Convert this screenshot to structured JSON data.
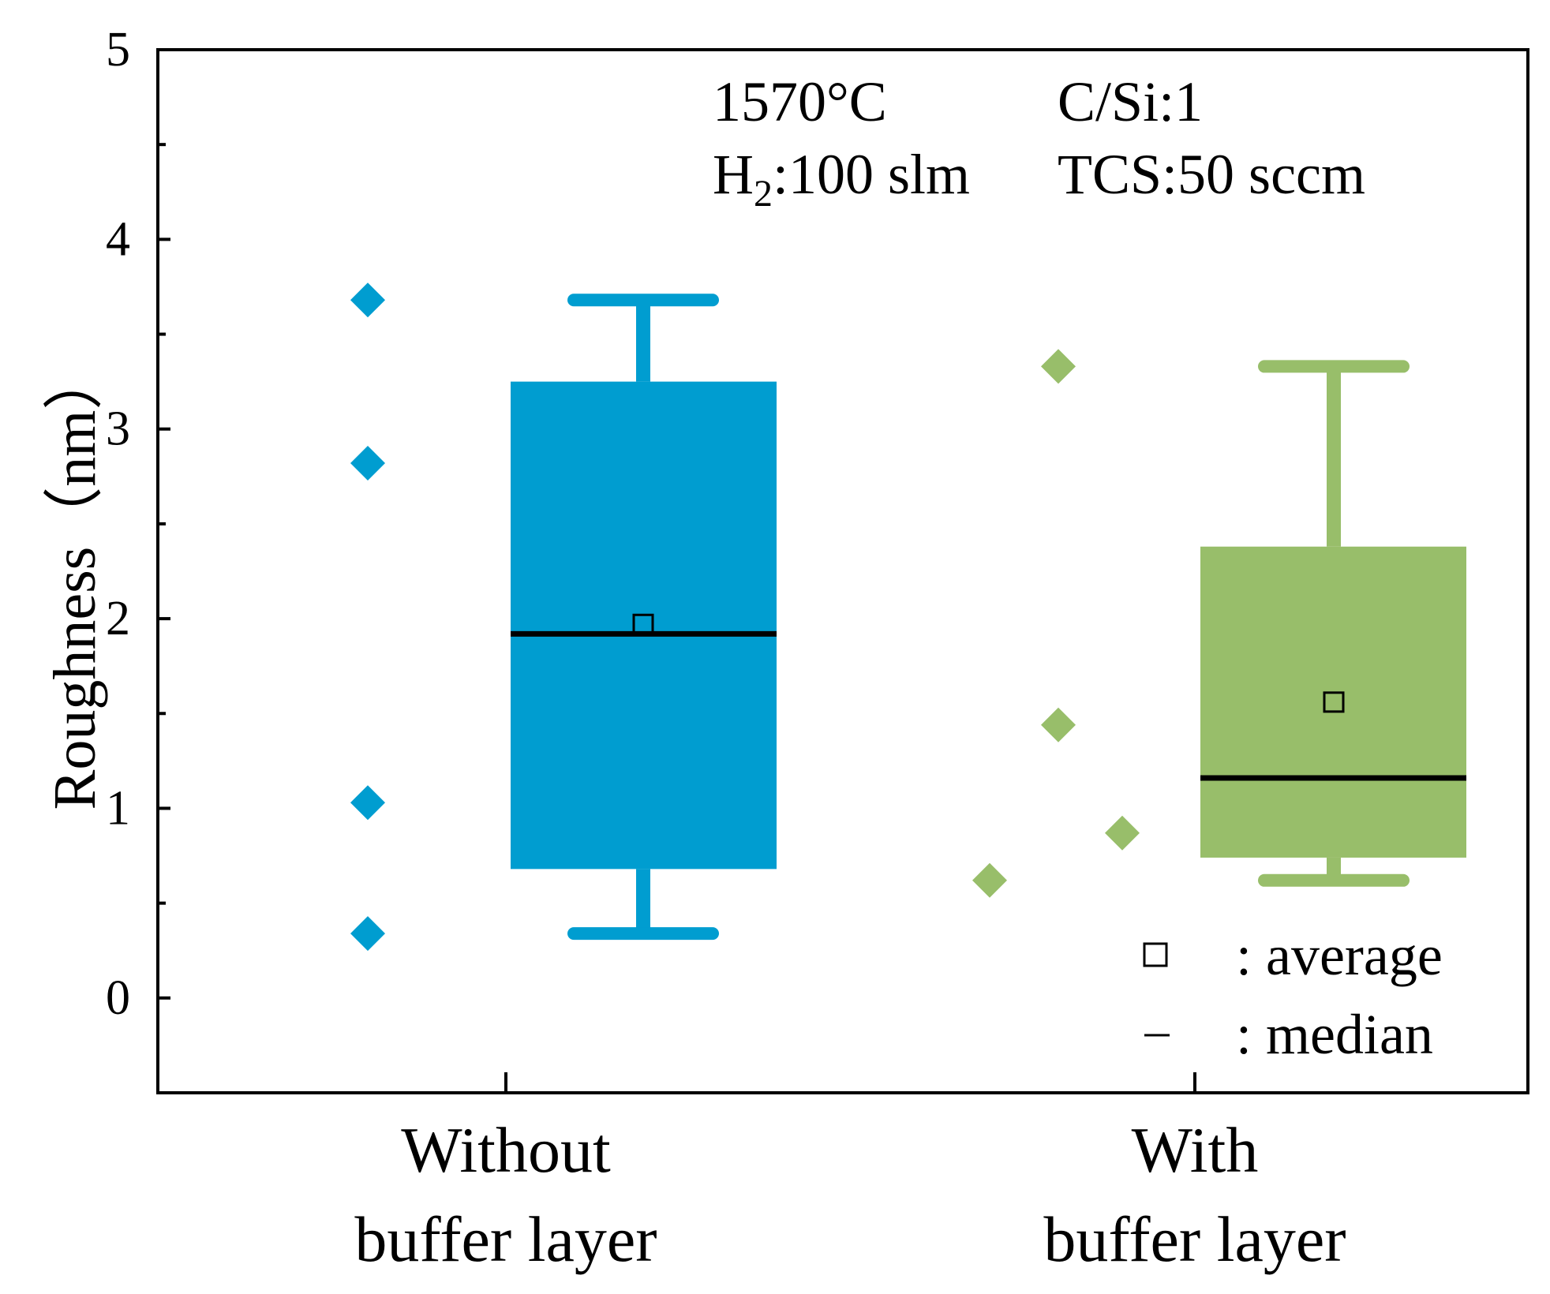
{
  "chart_data": {
    "type": "box",
    "ylabel": "Roughness（nm）",
    "ylim": [
      -0.5,
      5
    ],
    "yticks": [
      "0",
      "1",
      "2",
      "3",
      "4",
      "5"
    ],
    "yticks_values": [
      0,
      1,
      2,
      3,
      4,
      5
    ],
    "categories": [
      {
        "line1": "Without",
        "line2": "buffer layer"
      },
      {
        "line1": "With",
        "line2": "buffer layer"
      }
    ],
    "series": [
      {
        "name": "Without buffer layer",
        "color": "#009DD0",
        "whisker_low": 0.34,
        "q1": 0.68,
        "median": 1.92,
        "q3": 3.25,
        "whisker_high": 3.68,
        "mean": 1.97,
        "points": [
          3.68,
          2.82,
          1.03,
          0.34
        ]
      },
      {
        "name": "With buffer layer",
        "color": "#98BE6A",
        "whisker_low": 0.62,
        "q1": 0.74,
        "median": 1.16,
        "q3": 2.38,
        "whisker_high": 3.33,
        "mean": 1.56,
        "points": [
          0.62,
          3.33,
          1.44,
          0.87
        ]
      }
    ],
    "annotations": {
      "temp": "1570°C",
      "ratio": "C/Si:1",
      "h2_prefix": "H",
      "h2_sub": "2",
      "h2_suffix": ":100 slm",
      "tcs": "TCS:50 sccm"
    },
    "legend": {
      "average_label": ": average",
      "median_label": ": median",
      "placement": "bottom-right"
    }
  }
}
